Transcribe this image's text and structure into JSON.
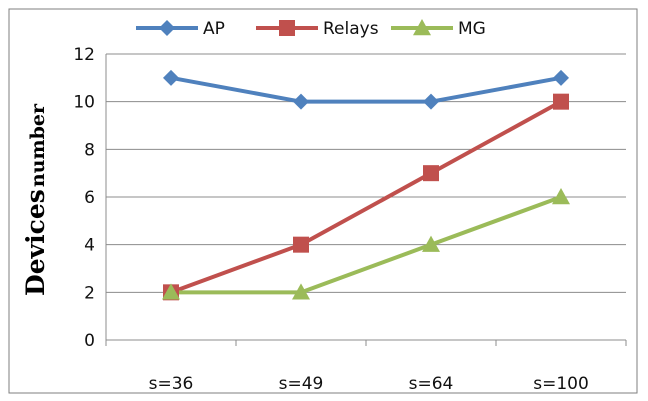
{
  "chart_data": {
    "type": "line",
    "categories": [
      "s=36",
      "s=49",
      "s=64",
      "s=100"
    ],
    "series": [
      {
        "name": "AP",
        "values": [
          11,
          10,
          10,
          11
        ],
        "color": "#4F81BD",
        "marker": "diamond"
      },
      {
        "name": "Relays",
        "values": [
          2,
          4,
          7,
          10
        ],
        "color": "#C0504D",
        "marker": "square"
      },
      {
        "name": "MG",
        "values": [
          2,
          2,
          4,
          6
        ],
        "color": "#9BBB59",
        "marker": "triangle"
      }
    ],
    "ylabel": {
      "main": "Devices",
      "sub": "number"
    },
    "ylim": [
      0,
      12
    ],
    "yticks": [
      "0",
      "2",
      "4",
      "6",
      "8",
      "10",
      "12"
    ],
    "grid": true,
    "legend": "top"
  }
}
